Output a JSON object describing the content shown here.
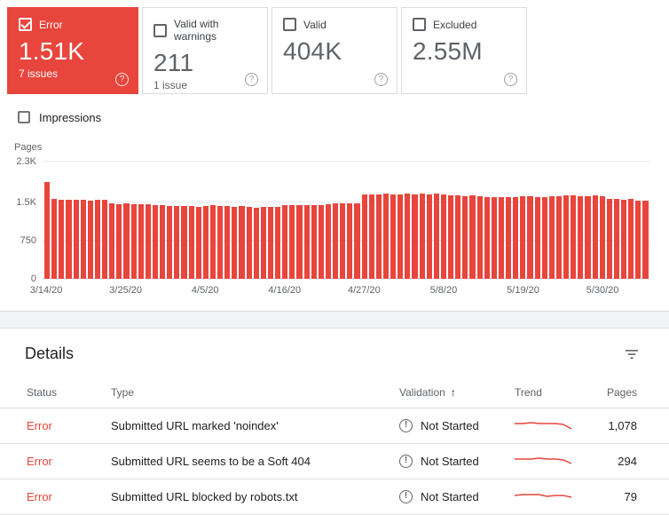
{
  "colors": {
    "error_red": "#e8453c",
    "border": "#dadce0",
    "gray_text": "#5f6368"
  },
  "icons": {
    "help": "?",
    "sort_asc": "↑",
    "exclamation": "!"
  },
  "summary_cards": [
    {
      "id": "error",
      "label": "Error",
      "value": "1.51K",
      "sub": "7 issues",
      "selected": true
    },
    {
      "id": "valid-with-warnings",
      "label": "Valid with warnings",
      "value": "211",
      "sub": "1 issue",
      "selected": false
    },
    {
      "id": "valid",
      "label": "Valid",
      "value": "404K",
      "sub": "",
      "selected": false
    },
    {
      "id": "excluded",
      "label": "Excluded",
      "value": "2.55M",
      "sub": "",
      "selected": false
    }
  ],
  "impressions_toggle": {
    "label": "Impressions",
    "checked": false
  },
  "chart_data": {
    "type": "bar",
    "title": "",
    "ylabel": "Pages",
    "xlabel": "",
    "ylim": [
      0,
      2300
    ],
    "yticks": [
      {
        "label": "2.3K",
        "value": 2300
      },
      {
        "label": "1.5K",
        "value": 1500
      },
      {
        "label": "750",
        "value": 750
      },
      {
        "label": "0",
        "value": 0
      }
    ],
    "xticks": [
      {
        "label": "3/14/20",
        "index": 0
      },
      {
        "label": "3/25/20",
        "index": 11
      },
      {
        "label": "4/5/20",
        "index": 22
      },
      {
        "label": "4/16/20",
        "index": 33
      },
      {
        "label": "4/27/20",
        "index": 44
      },
      {
        "label": "5/8/20",
        "index": 55
      },
      {
        "label": "5/19/20",
        "index": 66
      },
      {
        "label": "5/30/20",
        "index": 77
      }
    ],
    "values": [
      1900,
      1560,
      1550,
      1555,
      1545,
      1550,
      1540,
      1555,
      1550,
      1480,
      1470,
      1475,
      1465,
      1470,
      1460,
      1440,
      1445,
      1430,
      1435,
      1425,
      1430,
      1420,
      1435,
      1440,
      1425,
      1430,
      1420,
      1435,
      1410,
      1400,
      1415,
      1405,
      1410,
      1445,
      1450,
      1440,
      1455,
      1445,
      1450,
      1470,
      1480,
      1475,
      1485,
      1490,
      1650,
      1660,
      1655,
      1665,
      1650,
      1660,
      1670,
      1660,
      1665,
      1655,
      1670,
      1650,
      1640,
      1630,
      1620,
      1635,
      1625,
      1600,
      1610,
      1605,
      1595,
      1600,
      1615,
      1620,
      1610,
      1605,
      1615,
      1620,
      1630,
      1640,
      1620,
      1615,
      1630,
      1625,
      1560,
      1570,
      1555,
      1560,
      1540,
      1530
    ]
  },
  "details": {
    "title": "Details",
    "columns": [
      "Status",
      "Type",
      "Validation",
      "Trend",
      "Pages"
    ],
    "rows": [
      {
        "status": "Error",
        "type": "Submitted URL marked 'noindex'",
        "validation": "Not Started",
        "pages": "1,078",
        "trend": [
          7,
          7,
          6,
          7,
          7,
          7,
          8,
          13
        ]
      },
      {
        "status": "Error",
        "type": "Submitted URL seems to be a Soft 404",
        "validation": "Not Started",
        "pages": "294",
        "trend": [
          7,
          7,
          7,
          6,
          7,
          7,
          8,
          12
        ]
      },
      {
        "status": "Error",
        "type": "Submitted URL blocked by robots.txt",
        "validation": "Not Started",
        "pages": "79",
        "trend": [
          8,
          7,
          7,
          7,
          9,
          8,
          8,
          10
        ]
      }
    ]
  }
}
